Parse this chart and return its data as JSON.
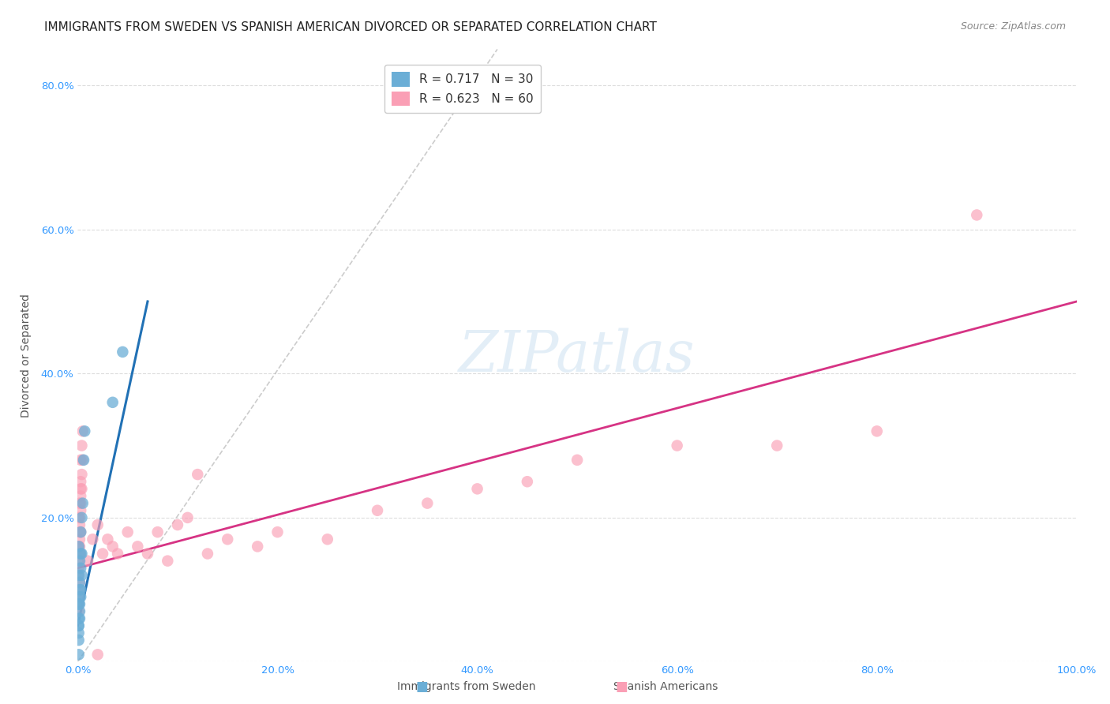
{
  "title": "IMMIGRANTS FROM SWEDEN VS SPANISH AMERICAN DIVORCED OR SEPARATED CORRELATION CHART",
  "source": "Source: ZipAtlas.com",
  "ylabel": "Divorced or Separated",
  "xlabel": "",
  "watermark": "ZIPatlas",
  "legend1_label": "R = 0.717   N = 30",
  "legend2_label": "R = 0.623   N = 60",
  "color_blue": "#6baed6",
  "color_pink": "#fa9fb5",
  "line_blue": "#2171b5",
  "line_pink": "#d63384",
  "line_diagonal": "#aaaaaa",
  "xlim": [
    0.0,
    1.0
  ],
  "ylim": [
    0.0,
    0.85
  ],
  "xticks": [
    0.0,
    0.2,
    0.4,
    0.6,
    0.8,
    1.0
  ],
  "yticks": [
    0.0,
    0.2,
    0.4,
    0.6,
    0.8
  ],
  "xtick_labels": [
    "0.0%",
    "20.0%",
    "40.0%",
    "60.0%",
    "80.0%",
    "100.0%"
  ],
  "ytick_labels": [
    "",
    "20.0%",
    "40.0%",
    "60.0%",
    "80.0%"
  ],
  "grid_color": "#dddddd",
  "background_color": "#ffffff",
  "title_fontsize": 11,
  "source_fontsize": 9,
  "axis_label_fontsize": 10,
  "tick_fontsize": 9.5,
  "blue_scatter": [
    [
      0.001,
      0.08
    ],
    [
      0.002,
      0.06
    ],
    [
      0.001,
      0.12
    ],
    [
      0.003,
      0.1
    ],
    [
      0.002,
      0.14
    ],
    [
      0.001,
      0.16
    ],
    [
      0.003,
      0.18
    ],
    [
      0.004,
      0.2
    ],
    [
      0.005,
      0.22
    ],
    [
      0.002,
      0.08
    ],
    [
      0.001,
      0.05
    ],
    [
      0.003,
      0.15
    ],
    [
      0.006,
      0.28
    ],
    [
      0.007,
      0.32
    ],
    [
      0.004,
      0.12
    ],
    [
      0.001,
      0.04
    ],
    [
      0.002,
      0.1
    ],
    [
      0.001,
      0.06
    ],
    [
      0.003,
      0.09
    ],
    [
      0.002,
      0.07
    ],
    [
      0.045,
      0.43
    ],
    [
      0.035,
      0.36
    ],
    [
      0.001,
      0.03
    ],
    [
      0.002,
      0.11
    ],
    [
      0.001,
      0.08
    ],
    [
      0.003,
      0.13
    ],
    [
      0.002,
      0.09
    ],
    [
      0.001,
      0.05
    ],
    [
      0.004,
      0.15
    ],
    [
      0.001,
      0.01
    ]
  ],
  "pink_scatter": [
    [
      0.001,
      0.2
    ],
    [
      0.002,
      0.22
    ],
    [
      0.003,
      0.24
    ],
    [
      0.001,
      0.16
    ],
    [
      0.002,
      0.18
    ],
    [
      0.003,
      0.28
    ],
    [
      0.004,
      0.3
    ],
    [
      0.002,
      0.15
    ],
    [
      0.001,
      0.12
    ],
    [
      0.005,
      0.32
    ],
    [
      0.003,
      0.25
    ],
    [
      0.002,
      0.2
    ],
    [
      0.001,
      0.14
    ],
    [
      0.004,
      0.26
    ],
    [
      0.003,
      0.22
    ],
    [
      0.002,
      0.19
    ],
    [
      0.001,
      0.1
    ],
    [
      0.003,
      0.21
    ],
    [
      0.002,
      0.17
    ],
    [
      0.001,
      0.13
    ],
    [
      0.001,
      0.08
    ],
    [
      0.002,
      0.11
    ],
    [
      0.004,
      0.24
    ],
    [
      0.003,
      0.18
    ],
    [
      0.005,
      0.28
    ],
    [
      0.001,
      0.07
    ],
    [
      0.002,
      0.15
    ],
    [
      0.003,
      0.23
    ],
    [
      0.001,
      0.09
    ],
    [
      0.002,
      0.16
    ],
    [
      0.03,
      0.17
    ],
    [
      0.025,
      0.15
    ],
    [
      0.015,
      0.17
    ],
    [
      0.04,
      0.15
    ],
    [
      0.06,
      0.16
    ],
    [
      0.07,
      0.15
    ],
    [
      0.02,
      0.19
    ],
    [
      0.01,
      0.14
    ],
    [
      0.05,
      0.18
    ],
    [
      0.035,
      0.16
    ],
    [
      0.1,
      0.19
    ],
    [
      0.08,
      0.18
    ],
    [
      0.12,
      0.26
    ],
    [
      0.2,
      0.18
    ],
    [
      0.15,
      0.17
    ],
    [
      0.18,
      0.16
    ],
    [
      0.13,
      0.15
    ],
    [
      0.09,
      0.14
    ],
    [
      0.11,
      0.2
    ],
    [
      0.25,
      0.17
    ],
    [
      0.3,
      0.21
    ],
    [
      0.35,
      0.22
    ],
    [
      0.4,
      0.24
    ],
    [
      0.45,
      0.25
    ],
    [
      0.5,
      0.28
    ],
    [
      0.6,
      0.3
    ],
    [
      0.7,
      0.3
    ],
    [
      0.8,
      0.32
    ],
    [
      0.9,
      0.62
    ],
    [
      0.02,
      0.01
    ]
  ],
  "blue_line_x": [
    0.0,
    0.07
  ],
  "blue_line_y": [
    0.05,
    0.5
  ],
  "pink_line_x": [
    0.0,
    1.0
  ],
  "pink_line_y": [
    0.13,
    0.5
  ],
  "diag_line_x": [
    0.0,
    0.42
  ],
  "diag_line_y": [
    0.0,
    0.85
  ]
}
